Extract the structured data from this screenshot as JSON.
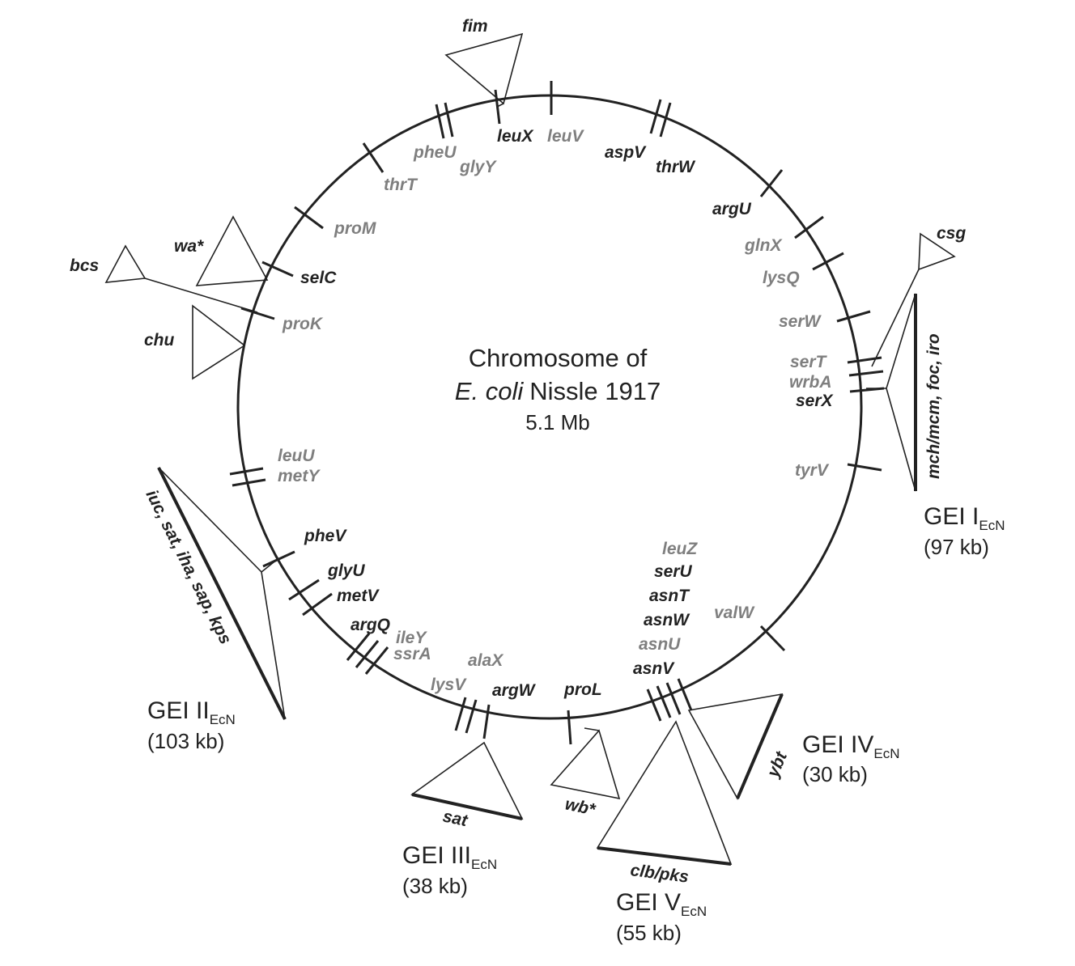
{
  "title": {
    "line1": "Chromosome of",
    "line2_italic": "E. coli",
    "line2_rest": "Nissle 1917",
    "size": "5.1 Mb"
  },
  "colors": {
    "black": "#222222",
    "gray": "#7f7f7f"
  },
  "genes": {
    "pheU": "pheU",
    "glyY": "glyY",
    "leuX": "leuX",
    "leuV": "leuV",
    "aspV": "aspV",
    "thrW": "thrW",
    "thrT": "thrT",
    "argU": "argU",
    "proM": "proM",
    "glnX": "glnX",
    "selC": "selC",
    "lysQ": "lysQ",
    "proK": "proK",
    "serW": "serW",
    "serT": "serT",
    "wrbA": "wrbA",
    "serX": "serX",
    "tyrV": "tyrV",
    "leuU": "leuU",
    "metY": "metY",
    "pheV": "pheV",
    "glyU": "glyU",
    "metV": "metV",
    "argQ": "argQ",
    "ileY": "ileY",
    "ssrA": "ssrA",
    "alaX": "alaX",
    "lysV": "lysV",
    "argW": "argW",
    "proL": "proL",
    "leuZ": "leuZ",
    "serU": "serU",
    "asnT": "asnT",
    "asnW": "asnW",
    "asnU": "asnU",
    "asnV": "asnV",
    "valW": "valW"
  },
  "loci": {
    "fim": "fim",
    "wa": "wa*",
    "bcs": "bcs",
    "chu": "chu",
    "csg": "csg",
    "gei1_genes": "mch/mcm, foc, iro",
    "gei2_genes": "iuc, sat, iha, sap, kps",
    "sat": "sat",
    "wb": "wb*",
    "clb": "clb/pks",
    "ybt": "ybt"
  },
  "islands": [
    {
      "name": "GEI I",
      "sub": "EcN",
      "size": "(97 kb)"
    },
    {
      "name": "GEI II",
      "sub": "EcN",
      "size": "(103 kb)"
    },
    {
      "name": "GEI III",
      "sub": "EcN",
      "size": "(38 kb)"
    },
    {
      "name": "GEI IV",
      "sub": "EcN",
      "size": "(30 kb)"
    },
    {
      "name": "GEI V",
      "sub": "EcN",
      "size": "(55 kb)"
    }
  ]
}
